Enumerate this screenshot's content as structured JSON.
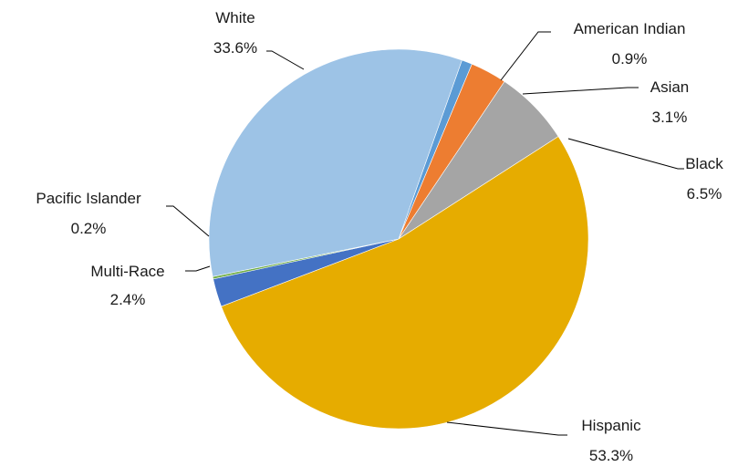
{
  "chart_data": {
    "type": "pie",
    "title": "",
    "start_angle_deg": 70.5,
    "direction": "clockwise",
    "legend": "none",
    "slices": [
      {
        "label": "American Indian",
        "value": 0.9,
        "value_label": "0.9%",
        "color": "#5B9BD5"
      },
      {
        "label": "Asian",
        "value": 3.1,
        "value_label": "3.1%",
        "color": "#ED7D31"
      },
      {
        "label": "Black",
        "value": 6.5,
        "value_label": "6.5%",
        "color": "#A5A5A5"
      },
      {
        "label": "Hispanic",
        "value": 53.3,
        "value_label": "53.3%",
        "color": "#E6AC00"
      },
      {
        "label": "Multi-Race",
        "value": 2.4,
        "value_label": "2.4%",
        "color": "#4472C4"
      },
      {
        "label": "Pacific Islander",
        "value": 0.2,
        "value_label": "0.2%",
        "color": "#70AD47"
      },
      {
        "label": "White",
        "value": 33.6,
        "value_label": "33.6%",
        "color": "#9DC3E6"
      }
    ]
  }
}
